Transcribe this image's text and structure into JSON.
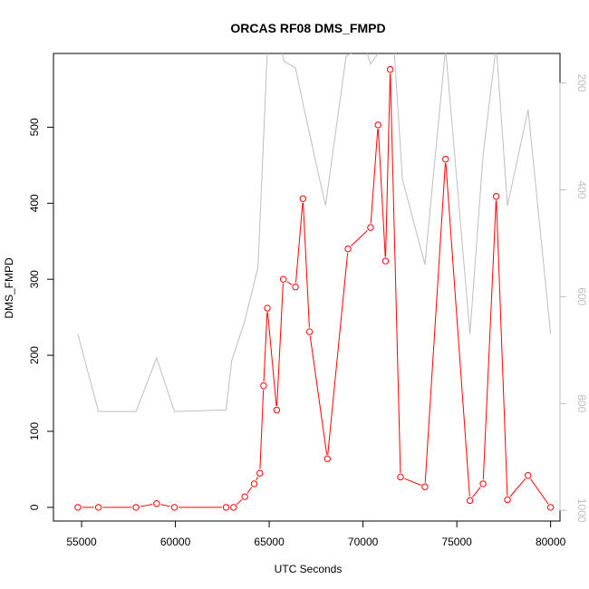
{
  "chart_data": {
    "type": "line",
    "title": "ORCAS RF08 DMS_FMPD",
    "xlabel": "UTC Seconds",
    "ylabel": "DMS_FMPD",
    "xlim": [
      53500,
      80500
    ],
    "ylim": [
      -18,
      597
    ],
    "y2lim": [
      1020,
      145
    ],
    "y2_reversed": true,
    "grid": false,
    "xticks": [
      55000,
      60000,
      65000,
      70000,
      75000,
      80000
    ],
    "yticks": [
      0,
      100,
      200,
      300,
      400,
      500
    ],
    "y2ticks": [
      200,
      400,
      600,
      800,
      1000
    ],
    "colors": {
      "primary": "#ff0000",
      "secondary": "#bebebe",
      "axis": "#000000"
    },
    "series": [
      {
        "role": "primary",
        "axis": "left",
        "markers": true,
        "x": [
          54800,
          55900,
          57900,
          59000,
          59950,
          62700,
          63100,
          63700,
          64200,
          64500,
          64700,
          64900,
          65400,
          65750,
          66400,
          66800,
          67150,
          68100,
          69200,
          70400,
          70800,
          71200,
          71450,
          72000,
          73300,
          74400,
          75700,
          76400,
          77100,
          77700,
          78800,
          80000
        ],
        "y": [
          0,
          0,
          0,
          5,
          0,
          0,
          0,
          14,
          31,
          45,
          160,
          262,
          128,
          300,
          290,
          406,
          231,
          64,
          340,
          368,
          503,
          324,
          576,
          40,
          27,
          458,
          9,
          31,
          409,
          10,
          42,
          0
        ]
      },
      {
        "role": "secondary",
        "axis": "right",
        "markers": false,
        "x": [
          54800,
          55900,
          57900,
          59000,
          59950,
          62700,
          63000,
          63700,
          64400,
          65000,
          65800,
          66400,
          66900,
          68000,
          69100,
          70100,
          70400,
          70800,
          71200,
          71500,
          72100,
          73300,
          74400,
          75700,
          76400,
          77100,
          77700,
          78800,
          80000
        ],
        "y": [
          670,
          815,
          815,
          715,
          815,
          812,
          720,
          645,
          545,
          60,
          160,
          172,
          255,
          430,
          150,
          130,
          165,
          145,
          120,
          50,
          380,
          540,
          135,
          670,
          335,
          130,
          430,
          250,
          670
        ]
      }
    ]
  }
}
